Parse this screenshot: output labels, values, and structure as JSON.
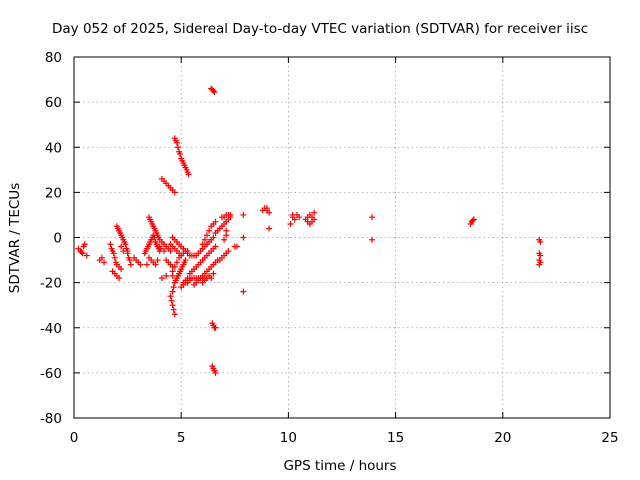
{
  "chart_data": {
    "type": "scatter",
    "title": "Day 052 of 2025, Sidereal Day-to-day VTEC variation (SDTVAR) for receiver iisc",
    "xlabel": "GPS time / hours",
    "ylabel": "SDTVAR / TECUs",
    "xlim": [
      0,
      25
    ],
    "ylim": [
      -80,
      80
    ],
    "xticks": [
      "0",
      "5",
      "10",
      "15",
      "20",
      "25"
    ],
    "yticks": [
      "-80",
      "-60",
      "-40",
      "-20",
      "0",
      "20",
      "40",
      "60",
      "80"
    ],
    "grid": true,
    "marker": "+",
    "color": "#ff0000",
    "series": [
      {
        "points": [
          [
            0.2,
            -5
          ],
          [
            0.3,
            -6
          ],
          [
            0.35,
            -6.5
          ],
          [
            0.4,
            -7
          ],
          [
            0.45,
            -4
          ],
          [
            0.5,
            -3
          ],
          [
            0.6,
            -8
          ],
          [
            1.2,
            -10
          ],
          [
            1.3,
            -9
          ],
          [
            1.4,
            -11
          ],
          [
            1.7,
            -3
          ],
          [
            1.75,
            -5
          ],
          [
            1.8,
            -6
          ],
          [
            1.85,
            -7
          ],
          [
            1.9,
            -9
          ],
          [
            1.95,
            -11
          ],
          [
            2.0,
            -12
          ],
          [
            2.1,
            -13
          ],
          [
            2.2,
            -14
          ],
          [
            1.8,
            -15
          ],
          [
            1.9,
            -16
          ],
          [
            2.0,
            -17
          ],
          [
            2.1,
            -18
          ],
          [
            2.0,
            5
          ],
          [
            2.05,
            4
          ],
          [
            2.1,
            3
          ],
          [
            2.15,
            2
          ],
          [
            2.2,
            1
          ],
          [
            2.25,
            0
          ],
          [
            2.3,
            -1
          ],
          [
            2.35,
            -2
          ],
          [
            2.4,
            -3
          ],
          [
            2.45,
            -5
          ],
          [
            2.5,
            -7
          ],
          [
            2.55,
            -9
          ],
          [
            2.6,
            -10
          ],
          [
            2.65,
            -12
          ],
          [
            2.2,
            -4
          ],
          [
            2.3,
            -6
          ],
          [
            2.5,
            -6
          ],
          [
            2.8,
            -9
          ],
          [
            2.9,
            -10
          ],
          [
            3.0,
            -11
          ],
          [
            3.1,
            -12
          ],
          [
            3.3,
            -7
          ],
          [
            3.35,
            -6
          ],
          [
            3.4,
            -5
          ],
          [
            3.45,
            -4
          ],
          [
            3.5,
            -3
          ],
          [
            3.55,
            -2
          ],
          [
            3.6,
            -1
          ],
          [
            3.65,
            0
          ],
          [
            3.7,
            1
          ],
          [
            3.75,
            0
          ],
          [
            3.8,
            -2
          ],
          [
            3.85,
            -3
          ],
          [
            3.9,
            -4
          ],
          [
            3.95,
            -5
          ],
          [
            4.0,
            -6
          ],
          [
            4.05,
            -5
          ],
          [
            3.5,
            9
          ],
          [
            3.55,
            8
          ],
          [
            3.6,
            7
          ],
          [
            3.65,
            6
          ],
          [
            3.7,
            5
          ],
          [
            3.75,
            4
          ],
          [
            3.8,
            3
          ],
          [
            3.85,
            2
          ],
          [
            3.9,
            1
          ],
          [
            3.95,
            0
          ],
          [
            3.5,
            -9
          ],
          [
            3.6,
            -10
          ],
          [
            3.7,
            -11
          ],
          [
            3.8,
            -12
          ],
          [
            3.9,
            -10
          ],
          [
            4.0,
            -1
          ],
          [
            4.1,
            -2
          ],
          [
            4.2,
            -3
          ],
          [
            4.3,
            -4
          ],
          [
            4.4,
            -5
          ],
          [
            4.5,
            -6
          ],
          [
            4.0,
            -4
          ],
          [
            4.2,
            -6
          ],
          [
            3.4,
            -12
          ],
          [
            4.1,
            -18
          ],
          [
            4.3,
            -17
          ],
          [
            4.1,
            26
          ],
          [
            4.2,
            25
          ],
          [
            4.3,
            24
          ],
          [
            4.4,
            23
          ],
          [
            4.5,
            22
          ],
          [
            4.6,
            21
          ],
          [
            4.7,
            20
          ],
          [
            4.6,
            -17
          ],
          [
            4.7,
            44
          ],
          [
            4.75,
            43
          ],
          [
            4.8,
            42
          ],
          [
            4.85,
            40
          ],
          [
            4.9,
            38
          ],
          [
            4.95,
            37
          ],
          [
            5.0,
            35
          ],
          [
            5.05,
            34
          ],
          [
            5.1,
            33
          ],
          [
            5.15,
            32
          ],
          [
            5.2,
            31
          ],
          [
            5.25,
            30
          ],
          [
            5.3,
            29
          ],
          [
            5.35,
            28
          ],
          [
            4.5,
            -26
          ],
          [
            4.55,
            -28
          ],
          [
            4.6,
            -30
          ],
          [
            4.65,
            -32
          ],
          [
            4.7,
            -34
          ],
          [
            4.6,
            -24
          ],
          [
            4.65,
            -22
          ],
          [
            4.7,
            -20
          ],
          [
            4.75,
            -19
          ],
          [
            4.8,
            -18
          ],
          [
            4.85,
            -17
          ],
          [
            4.9,
            -16
          ],
          [
            4.95,
            -15
          ],
          [
            5.0,
            -14
          ],
          [
            5.05,
            -13
          ],
          [
            5.1,
            -12
          ],
          [
            5.15,
            -11
          ],
          [
            5.2,
            -10
          ],
          [
            4.6,
            -15
          ],
          [
            4.7,
            -13
          ],
          [
            4.8,
            -11
          ],
          [
            4.9,
            -9
          ],
          [
            5.0,
            -8
          ],
          [
            5.1,
            -7
          ],
          [
            5.2,
            -6
          ],
          [
            5.3,
            -6
          ],
          [
            4.3,
            -10
          ],
          [
            4.4,
            -11
          ],
          [
            4.5,
            -12
          ],
          [
            4.6,
            -13
          ],
          [
            4.5,
            -3
          ],
          [
            4.6,
            -4
          ],
          [
            4.7,
            -5
          ],
          [
            4.8,
            -6
          ],
          [
            4.9,
            -7
          ],
          [
            5.0,
            -8
          ],
          [
            4.6,
            0
          ],
          [
            4.7,
            -1
          ],
          [
            4.8,
            -2
          ],
          [
            4.9,
            -3
          ],
          [
            5.0,
            -4
          ],
          [
            5.1,
            -5
          ],
          [
            5.2,
            -6
          ],
          [
            5.3,
            -7
          ],
          [
            5.4,
            -8
          ],
          [
            5.5,
            -8
          ],
          [
            5.6,
            -8
          ],
          [
            5.7,
            -8
          ],
          [
            5.8,
            -7
          ],
          [
            5.9,
            -6
          ],
          [
            6.0,
            -5
          ],
          [
            6.1,
            -4
          ],
          [
            6.2,
            -3
          ],
          [
            6.3,
            -2
          ],
          [
            6.4,
            -1
          ],
          [
            6.5,
            0
          ],
          [
            5.1,
            -20
          ],
          [
            5.2,
            -19
          ],
          [
            5.3,
            -18
          ],
          [
            5.4,
            -18
          ],
          [
            5.5,
            -18
          ],
          [
            5.6,
            -18
          ],
          [
            5.7,
            -18
          ],
          [
            5.8,
            -18
          ],
          [
            5.9,
            -18
          ],
          [
            6.0,
            -18
          ],
          [
            6.1,
            -18
          ],
          [
            5.4,
            -16
          ],
          [
            5.5,
            -15
          ],
          [
            5.6,
            -14
          ],
          [
            5.7,
            -13
          ],
          [
            5.8,
            -12
          ],
          [
            5.9,
            -11
          ],
          [
            6.0,
            -10
          ],
          [
            6.1,
            -9
          ],
          [
            6.2,
            -8
          ],
          [
            6.3,
            -7
          ],
          [
            6.4,
            -6
          ],
          [
            6.5,
            -5
          ],
          [
            6.6,
            -4
          ],
          [
            5.6,
            -21
          ],
          [
            5.7,
            -20
          ],
          [
            5.8,
            -19
          ],
          [
            5.9,
            -18
          ],
          [
            6.0,
            -17
          ],
          [
            6.1,
            -16
          ],
          [
            6.2,
            -15
          ],
          [
            6.3,
            -14
          ],
          [
            6.4,
            -13
          ],
          [
            6.5,
            -12
          ],
          [
            6.6,
            -11
          ],
          [
            6.7,
            -10
          ],
          [
            5.0,
            -22
          ],
          [
            5.1,
            -21
          ],
          [
            5.2,
            -20
          ],
          [
            5.3,
            -20
          ],
          [
            5.4,
            -19
          ],
          [
            6.0,
            -3
          ],
          [
            6.1,
            -1
          ],
          [
            6.2,
            1
          ],
          [
            6.3,
            3
          ],
          [
            6.4,
            5
          ],
          [
            6.5,
            6
          ],
          [
            6.6,
            7
          ],
          [
            6.0,
            -20
          ],
          [
            6.1,
            -19
          ],
          [
            6.2,
            -18
          ],
          [
            6.3,
            -17
          ],
          [
            6.4,
            -18
          ],
          [
            6.5,
            -16
          ],
          [
            6.4,
            66
          ],
          [
            6.45,
            65.5
          ],
          [
            6.5,
            65
          ],
          [
            6.55,
            64.5
          ],
          [
            6.45,
            -38
          ],
          [
            6.5,
            -39
          ],
          [
            6.55,
            -40
          ],
          [
            6.6,
            -40
          ],
          [
            6.45,
            -57
          ],
          [
            6.5,
            -58
          ],
          [
            6.55,
            -59
          ],
          [
            6.6,
            -60
          ],
          [
            6.6,
            2
          ],
          [
            6.7,
            3
          ],
          [
            6.8,
            4
          ],
          [
            6.9,
            5
          ],
          [
            7.0,
            6
          ],
          [
            7.1,
            7
          ],
          [
            7.2,
            8
          ],
          [
            7.3,
            9
          ],
          [
            6.8,
            -10
          ],
          [
            6.9,
            -9
          ],
          [
            7.0,
            -8
          ],
          [
            7.1,
            -7
          ],
          [
            7.2,
            -6
          ],
          [
            7.0,
            -1
          ],
          [
            7.1,
            1
          ],
          [
            6.9,
            9
          ],
          [
            7.0,
            9
          ],
          [
            7.1,
            10
          ],
          [
            7.2,
            10
          ],
          [
            7.3,
            10
          ],
          [
            7.1,
            3
          ],
          [
            7.5,
            -4
          ],
          [
            7.6,
            -4
          ],
          [
            7.9,
            10
          ],
          [
            7.9,
            0
          ],
          [
            7.9,
            -24
          ],
          [
            8.8,
            12
          ],
          [
            8.9,
            13
          ],
          [
            9.0,
            12
          ],
          [
            9.1,
            11
          ],
          [
            9.0,
            13
          ],
          [
            9.1,
            4
          ],
          [
            10.1,
            6
          ],
          [
            10.2,
            9
          ],
          [
            10.3,
            8
          ],
          [
            10.4,
            10
          ],
          [
            10.5,
            9
          ],
          [
            10.2,
            10
          ],
          [
            10.8,
            8
          ],
          [
            10.9,
            9
          ],
          [
            11.0,
            10
          ],
          [
            11.1,
            9
          ],
          [
            11.2,
            8
          ],
          [
            10.9,
            7
          ],
          [
            11.0,
            6
          ],
          [
            11.1,
            7
          ],
          [
            11.2,
            11
          ],
          [
            13.9,
            9
          ],
          [
            13.9,
            -1
          ],
          [
            18.5,
            6
          ],
          [
            18.55,
            7
          ],
          [
            18.6,
            7.5
          ],
          [
            18.65,
            8
          ],
          [
            21.7,
            -1
          ],
          [
            21.75,
            -2
          ],
          [
            21.7,
            -7
          ],
          [
            21.75,
            -8
          ],
          [
            21.7,
            -10
          ],
          [
            21.75,
            -11
          ],
          [
            21.7,
            -12
          ]
        ]
      }
    ]
  }
}
